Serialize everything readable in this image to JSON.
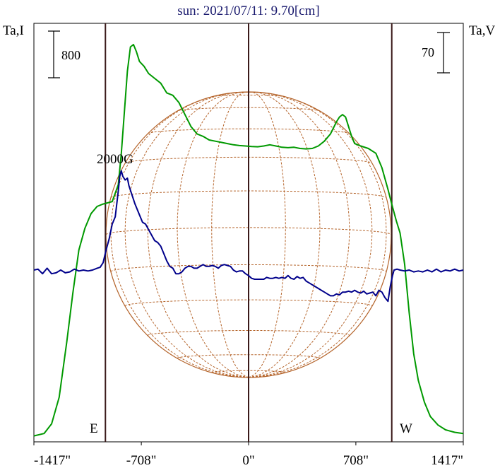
{
  "chart_data": {
    "type": "line",
    "title": "sun: 2021/07/11: 9.70[cm]",
    "left_axis_label": "Ta,I",
    "right_axis_label": "Ta,V",
    "left_scale_bar": "800",
    "right_scale_bar": "70",
    "annotation": "2000G",
    "limb_labels": {
      "east": "E",
      "west": "W"
    },
    "x_ticks": [
      {
        "value": -1417,
        "label": "-1417\""
      },
      {
        "value": -708,
        "label": "-708\""
      },
      {
        "value": 0,
        "label": "0\""
      },
      {
        "value": 708,
        "label": "708\""
      },
      {
        "value": 1417,
        "label": "1417\""
      }
    ],
    "xlim": [
      -1417,
      1417
    ],
    "limb_positions": [
      -945,
      0,
      945
    ],
    "grid": false,
    "series": [
      {
        "color": "#009900",
        "points": [
          [
            -1417,
            0.01
          ],
          [
            -1350,
            0.02
          ],
          [
            -1300,
            0.06
          ],
          [
            -1250,
            0.17
          ],
          [
            -1200,
            0.4
          ],
          [
            -1160,
            0.6
          ],
          [
            -1120,
            0.78
          ],
          [
            -1080,
            0.87
          ],
          [
            -1040,
            0.93
          ],
          [
            -1000,
            0.96
          ],
          [
            -960,
            0.97
          ],
          [
            -900,
            0.98
          ],
          [
            -860,
            1.05
          ],
          [
            -840,
            1.18
          ],
          [
            -820,
            1.35
          ],
          [
            -800,
            1.52
          ],
          [
            -780,
            1.62
          ],
          [
            -760,
            1.63
          ],
          [
            -740,
            1.6
          ],
          [
            -720,
            1.56
          ],
          [
            -690,
            1.54
          ],
          [
            -660,
            1.51
          ],
          [
            -620,
            1.49
          ],
          [
            -580,
            1.47
          ],
          [
            -540,
            1.43
          ],
          [
            -500,
            1.42
          ],
          [
            -460,
            1.39
          ],
          [
            -420,
            1.34
          ],
          [
            -380,
            1.29
          ],
          [
            -340,
            1.26
          ],
          [
            -300,
            1.25
          ],
          [
            -260,
            1.235
          ],
          [
            -220,
            1.23
          ],
          [
            -180,
            1.225
          ],
          [
            -140,
            1.22
          ],
          [
            -100,
            1.215
          ],
          [
            -60,
            1.212
          ],
          [
            -20,
            1.21
          ],
          [
            20,
            1.208
          ],
          [
            60,
            1.207
          ],
          [
            100,
            1.21
          ],
          [
            140,
            1.215
          ],
          [
            180,
            1.21
          ],
          [
            220,
            1.205
          ],
          [
            260,
            1.203
          ],
          [
            300,
            1.205
          ],
          [
            340,
            1.2
          ],
          [
            380,
            1.198
          ],
          [
            420,
            1.2
          ],
          [
            460,
            1.21
          ],
          [
            500,
            1.23
          ],
          [
            540,
            1.26
          ],
          [
            580,
            1.31
          ],
          [
            600,
            1.33
          ],
          [
            620,
            1.34
          ],
          [
            640,
            1.33
          ],
          [
            660,
            1.29
          ],
          [
            680,
            1.25
          ],
          [
            700,
            1.22
          ],
          [
            740,
            1.21
          ],
          [
            790,
            1.2
          ],
          [
            840,
            1.18
          ],
          [
            880,
            1.12
          ],
          [
            920,
            1.03
          ],
          [
            945,
            0.97
          ],
          [
            975,
            0.9
          ],
          [
            1000,
            0.85
          ],
          [
            1030,
            0.72
          ],
          [
            1060,
            0.52
          ],
          [
            1090,
            0.35
          ],
          [
            1120,
            0.24
          ],
          [
            1160,
            0.15
          ],
          [
            1200,
            0.09
          ],
          [
            1250,
            0.055
          ],
          [
            1300,
            0.035
          ],
          [
            1360,
            0.025
          ],
          [
            1417,
            0.02
          ]
        ]
      },
      {
        "color": "#00008b",
        "points": [
          [
            -1417,
            0.0
          ],
          [
            -1390,
            0.005
          ],
          [
            -1360,
            -0.02
          ],
          [
            -1330,
            0.01
          ],
          [
            -1300,
            -0.02
          ],
          [
            -1270,
            -0.015
          ],
          [
            -1240,
            0.0
          ],
          [
            -1210,
            -0.015
          ],
          [
            -1180,
            -0.01
          ],
          [
            -1150,
            0.005
          ],
          [
            -1120,
            -0.005
          ],
          [
            -1090,
            0.0
          ],
          [
            -1060,
            -0.005
          ],
          [
            -1030,
            0.0
          ],
          [
            -1000,
            0.01
          ],
          [
            -980,
            0.015
          ],
          [
            -960,
            0.04
          ],
          [
            -940,
            0.11
          ],
          [
            -920,
            0.17
          ],
          [
            -900,
            0.25
          ],
          [
            -880,
            0.29
          ],
          [
            -860,
            0.43
          ],
          [
            -850,
            0.51
          ],
          [
            -840,
            0.54
          ],
          [
            -830,
            0.51
          ],
          [
            -815,
            0.49
          ],
          [
            -800,
            0.5
          ],
          [
            -790,
            0.46
          ],
          [
            -770,
            0.41
          ],
          [
            -750,
            0.36
          ],
          [
            -720,
            0.3
          ],
          [
            -700,
            0.26
          ],
          [
            -680,
            0.25
          ],
          [
            -660,
            0.22
          ],
          [
            -640,
            0.19
          ],
          [
            -620,
            0.16
          ],
          [
            -600,
            0.15
          ],
          [
            -580,
            0.13
          ],
          [
            -560,
            0.09
          ],
          [
            -540,
            0.05
          ],
          [
            -520,
            0.02
          ],
          [
            -500,
            0.01
          ],
          [
            -480,
            -0.02
          ],
          [
            -460,
            -0.02
          ],
          [
            -440,
            -0.01
          ],
          [
            -420,
            0.01
          ],
          [
            -400,
            0.02
          ],
          [
            -380,
            0.02
          ],
          [
            -360,
            0.01
          ],
          [
            -340,
            0.01
          ],
          [
            -320,
            0.02
          ],
          [
            -300,
            0.03
          ],
          [
            -280,
            0.02
          ],
          [
            -260,
            0.02
          ],
          [
            -240,
            0.025
          ],
          [
            -220,
            0.02
          ],
          [
            -200,
            0.01
          ],
          [
            -180,
            0.025
          ],
          [
            -160,
            0.03
          ],
          [
            -140,
            0.025
          ],
          [
            -120,
            0.02
          ],
          [
            -100,
            0.0
          ],
          [
            -80,
            -0.01
          ],
          [
            -60,
            -0.005
          ],
          [
            -40,
            -0.005
          ],
          [
            -20,
            -0.02
          ],
          [
            0,
            -0.03
          ],
          [
            20,
            -0.045
          ],
          [
            40,
            -0.05
          ],
          [
            60,
            -0.05
          ],
          [
            80,
            -0.05
          ],
          [
            100,
            -0.05
          ],
          [
            120,
            -0.04
          ],
          [
            140,
            -0.045
          ],
          [
            160,
            -0.045
          ],
          [
            180,
            -0.04
          ],
          [
            200,
            -0.045
          ],
          [
            220,
            -0.04
          ],
          [
            240,
            -0.045
          ],
          [
            260,
            -0.03
          ],
          [
            280,
            -0.045
          ],
          [
            300,
            -0.05
          ],
          [
            320,
            -0.035
          ],
          [
            340,
            -0.045
          ],
          [
            360,
            -0.04
          ],
          [
            380,
            -0.06
          ],
          [
            400,
            -0.07
          ],
          [
            420,
            -0.08
          ],
          [
            440,
            -0.09
          ],
          [
            460,
            -0.1
          ],
          [
            480,
            -0.11
          ],
          [
            500,
            -0.12
          ],
          [
            520,
            -0.13
          ],
          [
            540,
            -0.14
          ],
          [
            560,
            -0.14
          ],
          [
            580,
            -0.13
          ],
          [
            600,
            -0.135
          ],
          [
            620,
            -0.12
          ],
          [
            640,
            -0.12
          ],
          [
            660,
            -0.115
          ],
          [
            680,
            -0.12
          ],
          [
            700,
            -0.11
          ],
          [
            720,
            -0.12
          ],
          [
            740,
            -0.125
          ],
          [
            760,
            -0.115
          ],
          [
            780,
            -0.13
          ],
          [
            800,
            -0.125
          ],
          [
            820,
            -0.12
          ],
          [
            840,
            -0.14
          ],
          [
            860,
            -0.11
          ],
          [
            880,
            -0.12
          ],
          [
            900,
            -0.15
          ],
          [
            920,
            -0.17
          ],
          [
            935,
            -0.09
          ],
          [
            950,
            -0.03
          ],
          [
            960,
            0.0
          ],
          [
            980,
            0.005
          ],
          [
            1000,
            0.0
          ],
          [
            1030,
            -0.005
          ],
          [
            1060,
            0.0
          ],
          [
            1090,
            -0.01
          ],
          [
            1120,
            -0.005
          ],
          [
            1150,
            -0.01
          ],
          [
            1180,
            0.0
          ],
          [
            1210,
            -0.01
          ],
          [
            1240,
            0.005
          ],
          [
            1270,
            -0.01
          ],
          [
            1300,
            0.0
          ],
          [
            1330,
            -0.005
          ],
          [
            1360,
            0.005
          ],
          [
            1390,
            -0.005
          ],
          [
            1417,
            0.0
          ]
        ]
      }
    ]
  }
}
